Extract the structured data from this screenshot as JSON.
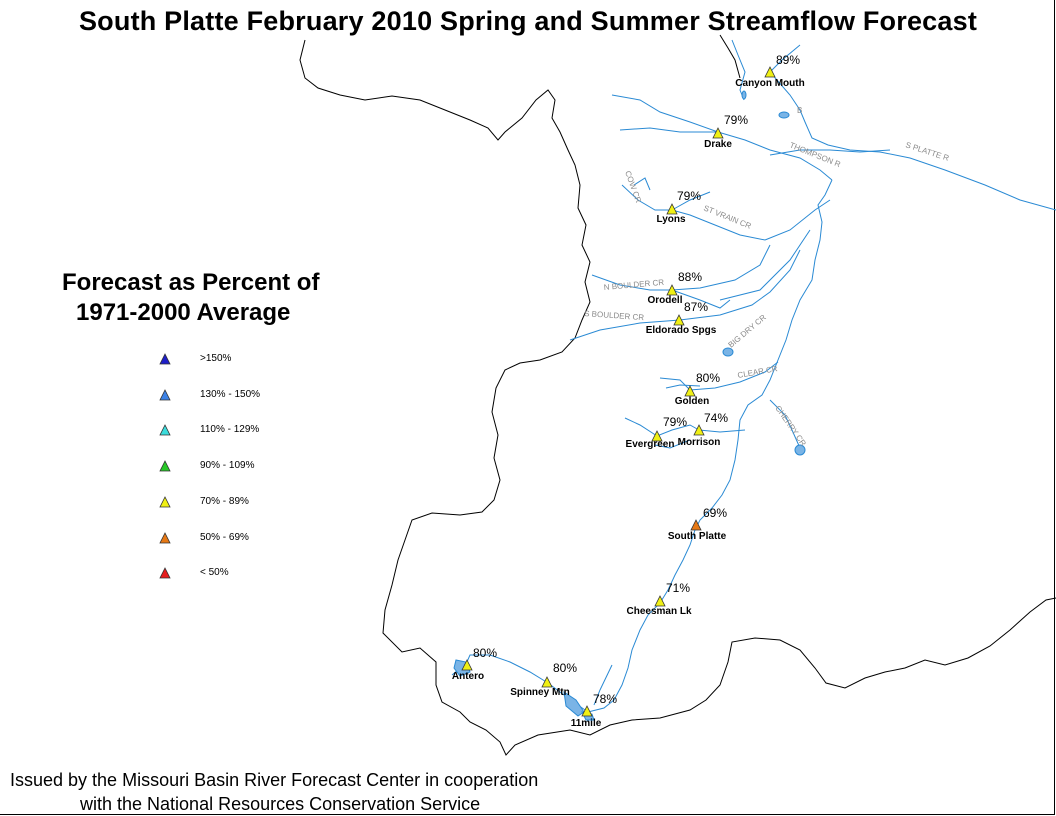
{
  "title": "South Platte February 2010 Spring and Summer Streamflow Forecast",
  "legend": {
    "title_line1": "Forecast as Percent of",
    "title_line2": "1971-2000 Average",
    "items": [
      {
        "label": ">150%",
        "color": "#1e1ec8"
      },
      {
        "label": "130% - 150%",
        "color": "#3c82e6"
      },
      {
        "label": "110% - 129%",
        "color": "#3cdcdc"
      },
      {
        "label": "90% - 109%",
        "color": "#28c828"
      },
      {
        "label": "70% - 89%",
        "color": "#f0f014"
      },
      {
        "label": "50% - 69%",
        "color": "#e67814"
      },
      {
        "label": "< 50%",
        "color": "#e61e1e"
      }
    ]
  },
  "stations": [
    {
      "name": "Canyon Mouth",
      "percent": "89%",
      "color": "#f0f014"
    },
    {
      "name": "Drake",
      "percent": "79%",
      "color": "#f0f014"
    },
    {
      "name": "Lyons",
      "percent": "79%",
      "color": "#f0f014"
    },
    {
      "name": "Orodell",
      "percent": "88%",
      "color": "#f0f014"
    },
    {
      "name": "Eldorado Spgs",
      "percent": "87%",
      "color": "#f0f014"
    },
    {
      "name": "Golden",
      "percent": "80%",
      "color": "#f0f014"
    },
    {
      "name": "Evergreen",
      "percent": "79%",
      "color": "#f0f014"
    },
    {
      "name": "Morrison",
      "percent": "74%",
      "color": "#f0f014"
    },
    {
      "name": "South Platte",
      "percent": "69%",
      "color": "#e67814"
    },
    {
      "name": "Cheesman Lk",
      "percent": "71%",
      "color": "#f0f014"
    },
    {
      "name": "Antero",
      "percent": "80%",
      "color": "#f0f014"
    },
    {
      "name": "Spinney Mtn",
      "percent": "80%",
      "color": "#f0f014"
    },
    {
      "name": "11mile",
      "percent": "78%",
      "color": "#f0f014"
    }
  ],
  "river_labels": {
    "thompson": "THOMPSON R",
    "s_platte": "S PLATTE R",
    "cow_cr": "COW CR",
    "st_vrain": "ST VRAIN CR",
    "n_boulder": "N BOULDER CR",
    "s_boulder": "S BOULDER CR",
    "big_dry": "BIG DRY CR",
    "clear_cr": "CLEAR CR",
    "cherry_cr": "CHERRY CR",
    "b": "B"
  },
  "footer": {
    "line1": "Issued by the Missouri Basin River Forecast Center in cooperation",
    "line2": "with the National Resources Conservation Service"
  },
  "colors": {
    "river": "#2a8ad4",
    "lake": "#7ab4e6",
    "boundary": "#000000"
  }
}
